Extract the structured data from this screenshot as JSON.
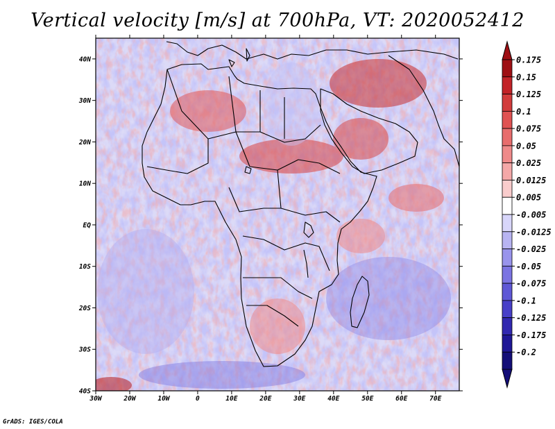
{
  "title": "Vertical velocity [m/s] at 700hPa, VT: 2020052412",
  "credit": "GrADS: IGES/COLA",
  "map": {
    "lon_range": [
      -30,
      77
    ],
    "lat_range": [
      -40,
      45
    ],
    "lat_ticks": [
      "40N",
      "30N",
      "20N",
      "10N",
      "EQ",
      "10S",
      "20S",
      "30S",
      "40S"
    ],
    "lon_ticks": [
      "30W",
      "20W",
      "10W",
      "0",
      "10E",
      "20E",
      "30E",
      "40E",
      "50E",
      "60E",
      "70E"
    ]
  },
  "colorbar": {
    "labels": [
      "0.175",
      "0.15",
      "0.125",
      "0.1",
      "0.075",
      "0.05",
      "0.025",
      "0.0125",
      "0.005",
      "-0.005",
      "-0.0125",
      "-0.025",
      "-0.05",
      "-0.075",
      "-0.1",
      "-0.125",
      "-0.175",
      "-0.2"
    ],
    "colors": [
      "#9e0f14",
      "#c22328",
      "#d23c3c",
      "#e05252",
      "#e86d6d",
      "#ef8a8a",
      "#f4a8a8",
      "#f9cccc",
      "#ffffff",
      "#d8d6fa",
      "#b8b4f2",
      "#9994ec",
      "#7b74e2",
      "#5f58d6",
      "#4840c8",
      "#3128b0",
      "#1f1796",
      "#140e78"
    ]
  }
}
